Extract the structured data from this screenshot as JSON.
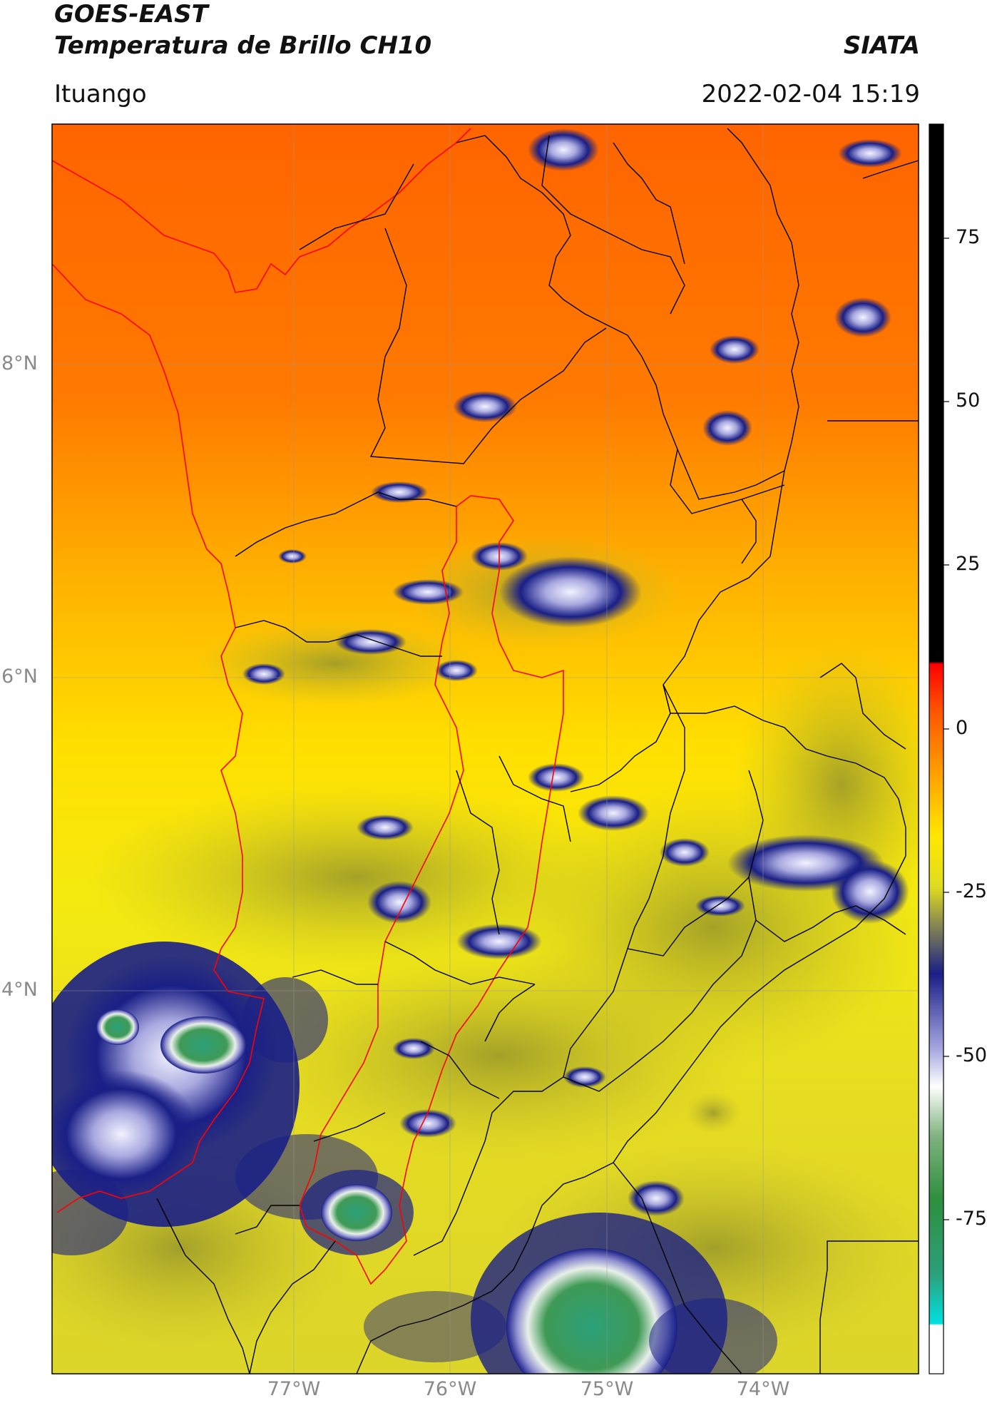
{
  "header": {
    "satellite": "GOES-EAST",
    "product": "Temperatura de Brillo CH10",
    "agency": "SIATA",
    "region": "Ituango",
    "datetime": "2022-02-04 15:19"
  },
  "map": {
    "lat_labels": [
      "8°N",
      "6°N",
      "4°N"
    ],
    "lon_labels": [
      "77°W",
      "76°W",
      "75°W",
      "74°W"
    ],
    "colors": {
      "warm_orange": "#ff6a00",
      "orange": "#ff9a00",
      "yellow": "#ffe800",
      "olive": "#b9b52a",
      "navy": "#1a1f86",
      "lavender": "#a6a6e0",
      "green": "#2f8f3f",
      "teal": "#2ca07a",
      "boundary_black": "#000000",
      "boundary_red": "#ff0000"
    }
  },
  "colorbar": {
    "ticks": [
      "75",
      "50",
      "25",
      "0",
      "-25",
      "-50",
      "-75"
    ],
    "tick_values": [
      75,
      50,
      25,
      0,
      -25,
      -50,
      -75
    ],
    "range": [
      -100,
      91
    ]
  }
}
